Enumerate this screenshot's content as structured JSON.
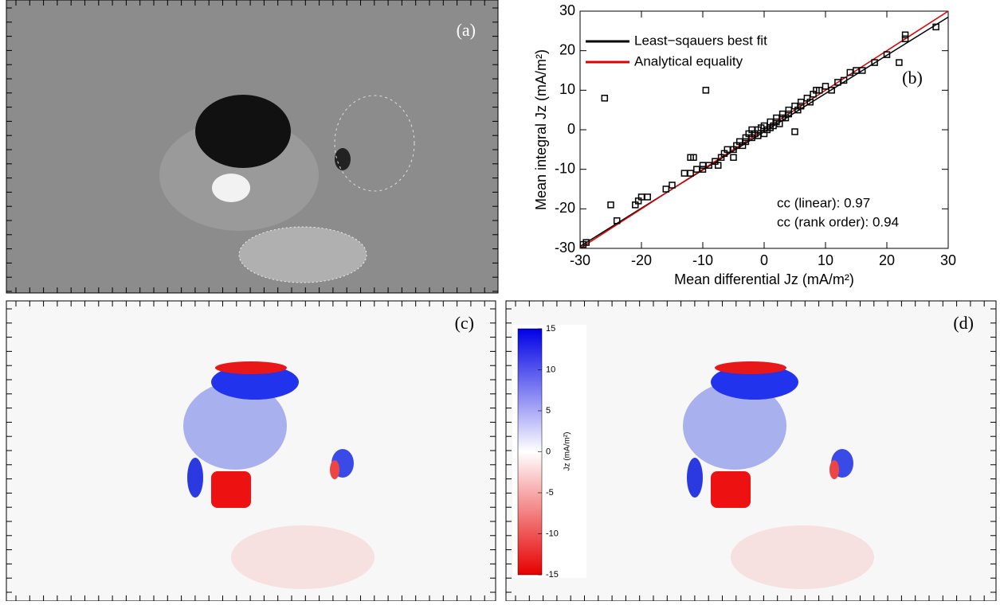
{
  "chart_data": [
    {
      "type": "image",
      "label": "(a)"
    },
    {
      "type": "scatter",
      "xlabel": "Mean differential Jz (mA/m²)",
      "ylabel": "Mean integral Jz (mA/m²)",
      "label": "(b)",
      "annotations": [
        "cc (linear): 0.97",
        "cc (rank order): 0.94"
      ],
      "xlim": [
        -30,
        30
      ],
      "ylim": [
        -30,
        30
      ],
      "xticks": [
        -30,
        -20,
        -10,
        0,
        10,
        20,
        30
      ],
      "yticks": [
        -30,
        -20,
        -10,
        0,
        10,
        20,
        30
      ],
      "marker_color": "#000000",
      "x": [
        -29.5,
        -29,
        -25,
        -24,
        -21,
        -20,
        -20.5,
        -19,
        -16,
        -15,
        -13,
        -12,
        -12,
        -11.5,
        -11,
        -10,
        -9.5,
        -10,
        -9,
        -8,
        -7.5,
        -7,
        -6.5,
        -6,
        -5,
        -5,
        -4.5,
        -4,
        -3.5,
        -3,
        -3,
        -2.5,
        -2,
        -2,
        -1.5,
        -1,
        -1,
        -0.5,
        0,
        0,
        0.5,
        1,
        1,
        1.5,
        2,
        2,
        2.5,
        3,
        3,
        3.5,
        4,
        4,
        5,
        5,
        5.5,
        6,
        6,
        7,
        7.5,
        8,
        8.5,
        9,
        10,
        11,
        12,
        13,
        14,
        15,
        16,
        18,
        20,
        22,
        23,
        23,
        28,
        -26
      ],
      "values": [
        -29,
        -28.5,
        -19,
        -23,
        -19,
        -17,
        -18,
        -17,
        -15,
        -14,
        -11,
        -11,
        -7,
        -7,
        -10,
        -10,
        10,
        -9,
        -9,
        -8,
        -9,
        -7,
        -6,
        -5,
        -5,
        -7,
        -4,
        -3,
        -4,
        -2,
        -3,
        -1,
        -2,
        0,
        -1,
        0,
        -1.5,
        0.5,
        1,
        -1,
        0,
        2,
        0.5,
        1,
        3,
        2,
        1.5,
        3,
        4,
        3,
        5,
        4,
        -0.5,
        6,
        5,
        7,
        6,
        8,
        7,
        9,
        10,
        10,
        11,
        10,
        12,
        12.5,
        14.5,
        15,
        15,
        17,
        19,
        17,
        23,
        24,
        26,
        8
      ],
      "series": [
        {
          "name": "Least−sqauers best fit",
          "color": "#000000",
          "x": [
            -30,
            30
          ],
          "values": [
            -29.5,
            28.5
          ]
        },
        {
          "name": "Analytical equality",
          "color": "#e00000",
          "x": [
            -30,
            30
          ],
          "values": [
            -30,
            30
          ]
        }
      ]
    },
    {
      "type": "image",
      "label": "(c)"
    },
    {
      "type": "image",
      "label": "(d)",
      "colorbar": {
        "label": "Jz (mA/m²)",
        "lim": [
          -15,
          15
        ],
        "ticks": [
          15,
          10,
          5,
          0,
          -5,
          -10,
          -15
        ]
      }
    }
  ]
}
